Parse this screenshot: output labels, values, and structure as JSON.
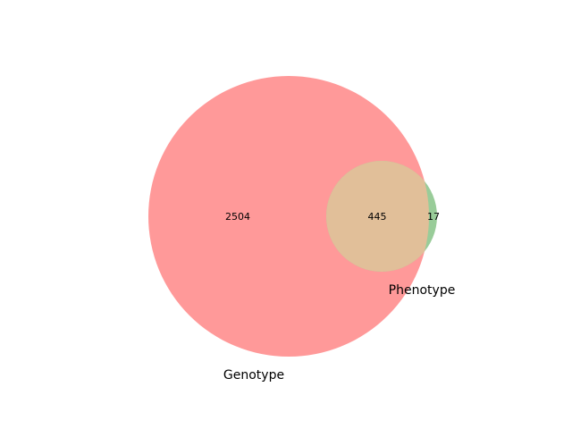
{
  "chart_data": {
    "type": "venn",
    "sets": [
      {
        "name": "Genotype",
        "color": "#ff9999"
      },
      {
        "name": "Phenotype",
        "color": "#99cc99"
      }
    ],
    "regions": {
      "genotype_only": 2504,
      "intersection": 445,
      "phenotype_only": 17
    },
    "intersection_color": "#e1bf99",
    "region_labels": {
      "genotype_only": "2504",
      "intersection": "445",
      "phenotype_only": "17"
    },
    "set_labels": {
      "genotype": "Genotype",
      "phenotype": "Phenotype"
    }
  }
}
